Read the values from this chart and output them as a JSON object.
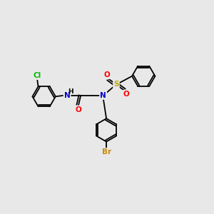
{
  "background_color": "#e8e8e8",
  "bond_color": "#000000",
  "atom_colors": {
    "N": "#0000cc",
    "O": "#ff0000",
    "Cl": "#00bb00",
    "Br": "#cc8800",
    "S": "#bbaa00",
    "H": "#000000",
    "C": "#000000"
  },
  "figsize": [
    3.0,
    3.0
  ],
  "dpi": 100,
  "lw": 1.3,
  "r": 0.55,
  "font_size": 7.5
}
